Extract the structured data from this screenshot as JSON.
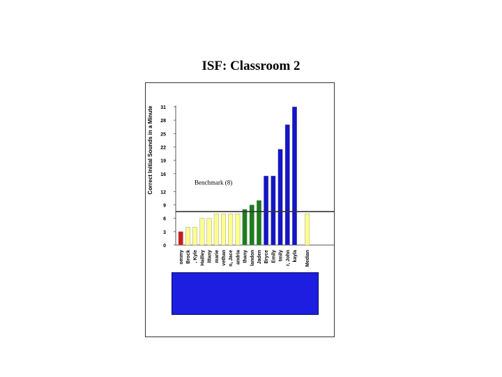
{
  "page": {
    "title": "ISF: Classroom 2"
  },
  "colors": {
    "red": "#cc1c1c",
    "yellow": "#fefe8e",
    "green": "#1c7d1c",
    "blue": "#1414c8",
    "benchmark_line": "#333333",
    "panel": "#1d1ee0"
  },
  "chart_data": {
    "type": "bar",
    "ylabel": "Correct Initial Sounds in a Minute",
    "xlabel": "",
    "ylim": [
      0,
      31
    ],
    "yticks": [
      0,
      3,
      6,
      9,
      12,
      16,
      19,
      22,
      25,
      28,
      31
    ],
    "grid": false,
    "benchmark": {
      "value": 7.5,
      "label": "Benchmark (8)"
    },
    "categories": [
      "ommy",
      "Brock",
      ", Kyle",
      "Hailley",
      "ittany",
      "marie",
      "vethan",
      "n, Jace",
      "andria",
      "thany",
      "landon",
      "Jaden",
      "Bryce",
      "Emily",
      "tmily",
      "r, John",
      "kayla",
      "Median"
    ],
    "values": [
      3,
      4,
      4,
      6,
      6,
      7,
      7,
      7,
      7,
      8,
      9,
      10,
      15.5,
      15.5,
      21.5,
      27,
      31,
      7
    ],
    "bar_colors": [
      "red",
      "yellow",
      "yellow",
      "yellow",
      "yellow",
      "yellow",
      "yellow",
      "yellow",
      "yellow",
      "green",
      "green",
      "green",
      "blue",
      "blue",
      "blue",
      "blue",
      "blue",
      "yellow"
    ]
  }
}
